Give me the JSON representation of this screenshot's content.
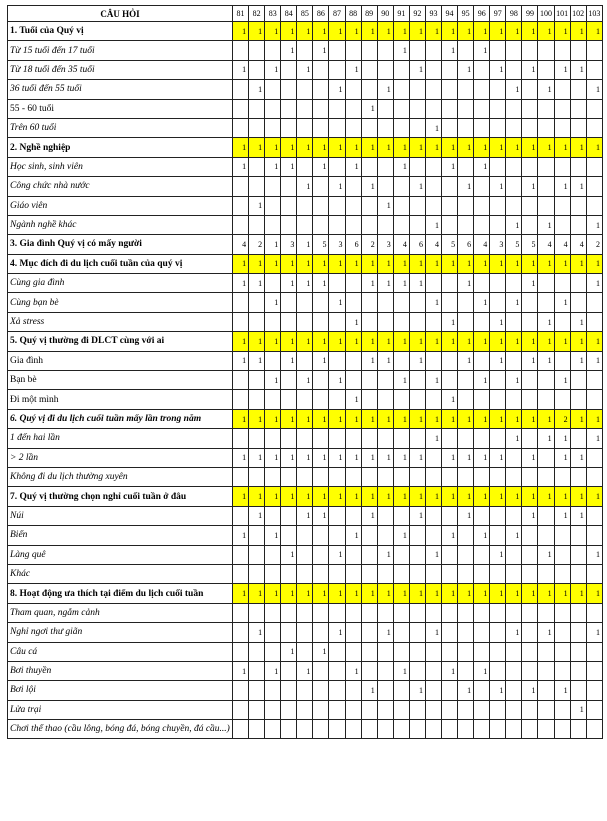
{
  "colors": {
    "highlight": "#ffff00",
    "border": "#222222"
  },
  "header": {
    "question_label": "CÂU HỎI",
    "columns": [
      "81",
      "82",
      "83",
      "84",
      "85",
      "86",
      "87",
      "88",
      "89",
      "90",
      "91",
      "92",
      "93",
      "94",
      "95",
      "96",
      "97",
      "98",
      "99",
      "100",
      "101",
      "102",
      "103"
    ]
  },
  "rows": [
    {
      "label": "1. Tuổi của Quý vị",
      "kind": "section",
      "highlight": true,
      "values": [
        "1",
        "1",
        "1",
        "1",
        "1",
        "1",
        "1",
        "1",
        "1",
        "1",
        "1",
        "1",
        "1",
        "1",
        "1",
        "1",
        "1",
        "1",
        "1",
        "1",
        "1",
        "1",
        "1"
      ]
    },
    {
      "label": "Từ 15 tuổi đến 17 tuổi",
      "kind": "item",
      "highlight": false,
      "values": [
        "",
        "",
        "",
        "1",
        "",
        "1",
        "",
        "",
        "",
        "",
        "1",
        "",
        "",
        "1",
        "",
        "1",
        "",
        "",
        "",
        "",
        "",
        "",
        ""
      ]
    },
    {
      "label": "Từ 18 tuổi đến 35 tuổi",
      "kind": "item",
      "highlight": false,
      "values": [
        "1",
        "",
        "1",
        "",
        "1",
        "",
        "",
        "1",
        "",
        "",
        "",
        "1",
        "",
        "",
        "1",
        "",
        "1",
        "",
        "1",
        "",
        "1",
        "1",
        ""
      ]
    },
    {
      "label": "36 tuổi đến 55 tuổi",
      "kind": "item",
      "highlight": false,
      "values": [
        "",
        "1",
        "",
        "",
        "",
        "",
        "1",
        "",
        "",
        "1",
        "",
        "",
        "",
        "",
        "",
        "",
        "",
        "1",
        "",
        "1",
        "",
        "",
        "1"
      ]
    },
    {
      "label": "55 - 60 tuổi",
      "kind": "item-plain",
      "highlight": false,
      "values": [
        "",
        "",
        "",
        "",
        "",
        "",
        "",
        "",
        "1",
        "",
        "",
        "",
        "",
        "",
        "",
        "",
        "",
        "",
        "",
        "",
        "",
        "",
        ""
      ]
    },
    {
      "label": "Trên 60 tuổi",
      "kind": "item",
      "highlight": false,
      "values": [
        "",
        "",
        "",
        "",
        "",
        "",
        "",
        "",
        "",
        "",
        "",
        "",
        "1",
        "",
        "",
        "",
        "",
        "",
        "",
        "",
        "",
        "",
        ""
      ]
    },
    {
      "label": "2. Nghề nghiệp",
      "kind": "section",
      "highlight": true,
      "values": [
        "1",
        "1",
        "1",
        "1",
        "1",
        "1",
        "1",
        "1",
        "1",
        "1",
        "1",
        "1",
        "1",
        "1",
        "1",
        "1",
        "1",
        "1",
        "1",
        "1",
        "1",
        "1",
        "1"
      ]
    },
    {
      "label": "Học sinh, sinh viên",
      "kind": "item",
      "highlight": false,
      "values": [
        "1",
        "",
        "1",
        "1",
        "",
        "1",
        "",
        "1",
        "",
        "",
        "1",
        "",
        "",
        "1",
        "",
        "1",
        "",
        "",
        "",
        "",
        "",
        "",
        ""
      ]
    },
    {
      "label": "Công chức nhà nước",
      "kind": "item",
      "highlight": false,
      "values": [
        "",
        "",
        "",
        "",
        "1",
        "",
        "1",
        "",
        "1",
        "",
        "",
        "1",
        "",
        "",
        "1",
        "",
        "1",
        "",
        "1",
        "",
        "1",
        "1",
        ""
      ]
    },
    {
      "label": "Giáo viên",
      "kind": "item",
      "highlight": false,
      "values": [
        "",
        "1",
        "",
        "",
        "",
        "",
        "",
        "",
        "",
        "1",
        "",
        "",
        "",
        "",
        "",
        "",
        "",
        "",
        "",
        "",
        "",
        "",
        ""
      ]
    },
    {
      "label": "Ngành nghề khác",
      "kind": "item",
      "highlight": false,
      "values": [
        "",
        "",
        "",
        "",
        "",
        "",
        "",
        "",
        "",
        "",
        "",
        "",
        "1",
        "",
        "",
        "",
        "",
        "1",
        "",
        "1",
        "",
        "",
        "1"
      ]
    },
    {
      "label": "3. Gia đình Quý vị có mấy người",
      "kind": "section",
      "highlight": false,
      "values": [
        "4",
        "2",
        "1",
        "3",
        "1",
        "5",
        "3",
        "6",
        "2",
        "3",
        "4",
        "6",
        "4",
        "5",
        "6",
        "4",
        "3",
        "5",
        "5",
        "4",
        "4",
        "4",
        "2"
      ]
    },
    {
      "label": "4. Mục đích đi du lịch cuối tuần của quý vị",
      "kind": "section",
      "highlight": true,
      "values": [
        "1",
        "1",
        "1",
        "1",
        "1",
        "1",
        "1",
        "1",
        "1",
        "1",
        "1",
        "1",
        "1",
        "1",
        "1",
        "1",
        "1",
        "1",
        "1",
        "1",
        "1",
        "1",
        "1"
      ]
    },
    {
      "label": "Cùng gia đình",
      "kind": "item",
      "highlight": false,
      "values": [
        "1",
        "1",
        "",
        "1",
        "1",
        "1",
        "",
        "",
        "1",
        "1",
        "1",
        "1",
        "",
        "",
        "1",
        "",
        "",
        "",
        "1",
        "",
        "",
        "",
        "1"
      ]
    },
    {
      "label": "Cùng bạn bè",
      "kind": "item",
      "highlight": false,
      "values": [
        "",
        "",
        "1",
        "",
        "",
        "",
        "1",
        "",
        "",
        "",
        "",
        "",
        "1",
        "",
        "",
        "1",
        "",
        "1",
        "",
        "",
        "1",
        "",
        ""
      ]
    },
    {
      "label": "Xả stress",
      "kind": "item",
      "highlight": false,
      "values": [
        "",
        "",
        "",
        "",
        "",
        "",
        "",
        "1",
        "",
        "",
        "",
        "",
        "",
        "1",
        "",
        "",
        "1",
        "",
        "",
        "1",
        "",
        "1",
        ""
      ]
    },
    {
      "label": "5. Quý vị thường đi DLCT cùng với ai",
      "kind": "section",
      "highlight": true,
      "values": [
        "1",
        "1",
        "1",
        "1",
        "1",
        "1",
        "1",
        "1",
        "1",
        "1",
        "1",
        "1",
        "1",
        "1",
        "1",
        "1",
        "1",
        "1",
        "1",
        "1",
        "1",
        "1",
        "1"
      ]
    },
    {
      "label": "Gia đình",
      "kind": "item-plain",
      "highlight": false,
      "values": [
        "1",
        "1",
        "",
        "1",
        "",
        "1",
        "",
        "",
        "1",
        "1",
        "",
        "1",
        "",
        "",
        "1",
        "",
        "1",
        "",
        "1",
        "1",
        "",
        "1",
        "1"
      ]
    },
    {
      "label": "Bạn bè",
      "kind": "item-plain",
      "highlight": false,
      "values": [
        "",
        "",
        "1",
        "",
        "1",
        "",
        "1",
        "",
        "",
        "",
        "1",
        "",
        "1",
        "",
        "",
        "1",
        "",
        "1",
        "",
        "",
        "1",
        "",
        ""
      ]
    },
    {
      "label": "Đi một mình",
      "kind": "item-plain",
      "highlight": false,
      "values": [
        "",
        "",
        "",
        "",
        "",
        "",
        "",
        "1",
        "",
        "",
        "",
        "",
        "",
        "1",
        "",
        "",
        "",
        "",
        "",
        "",
        "",
        "",
        ""
      ]
    },
    {
      "label": "6. Quý vị đi du lịch cuối tuần mấy lần trong năm",
      "kind": "section-italic",
      "highlight": true,
      "values": [
        "1",
        "1",
        "1",
        "1",
        "1",
        "1",
        "1",
        "1",
        "1",
        "1",
        "1",
        "1",
        "1",
        "1",
        "1",
        "1",
        "1",
        "1",
        "1",
        "1",
        "2",
        "1",
        "1"
      ]
    },
    {
      "label": "1 đến hai lần",
      "kind": "item",
      "highlight": false,
      "values": [
        "",
        "",
        "",
        "",
        "",
        "",
        "",
        "",
        "",
        "",
        "",
        "",
        "1",
        "",
        "",
        "",
        "",
        "1",
        "",
        "1",
        "1",
        "",
        "1"
      ]
    },
    {
      "label": "> 2 lần",
      "kind": "item",
      "highlight": false,
      "values": [
        "1",
        "1",
        "1",
        "1",
        "1",
        "1",
        "1",
        "1",
        "1",
        "1",
        "1",
        "1",
        "",
        "1",
        "1",
        "1",
        "1",
        "",
        "1",
        "",
        "1",
        "1",
        ""
      ]
    },
    {
      "label": "Không đi du lịch thường xuyên",
      "kind": "item",
      "highlight": false,
      "values": [
        "",
        "",
        "",
        "",
        "",
        "",
        "",
        "",
        "",
        "",
        "",
        "",
        "",
        "",
        "",
        "",
        "",
        "",
        "",
        "",
        "",
        "",
        ""
      ]
    },
    {
      "label": "7. Quý vị thường chọn nghỉ cuối tuần ở đâu",
      "kind": "section",
      "highlight": true,
      "values": [
        "1",
        "1",
        "1",
        "1",
        "1",
        "1",
        "1",
        "1",
        "1",
        "1",
        "1",
        "1",
        "1",
        "1",
        "1",
        "1",
        "1",
        "1",
        "1",
        "1",
        "1",
        "1",
        "1"
      ]
    },
    {
      "label": "Núi",
      "kind": "item",
      "highlight": false,
      "values": [
        "",
        "1",
        "",
        "",
        "1",
        "1",
        "",
        "",
        "1",
        "",
        "",
        "1",
        "",
        "",
        "1",
        "",
        "",
        "",
        "1",
        "",
        "1",
        "1",
        ""
      ]
    },
    {
      "label": "Biển",
      "kind": "item",
      "highlight": false,
      "values": [
        "1",
        "",
        "1",
        "",
        "",
        "",
        "",
        "1",
        "",
        "",
        "1",
        "",
        "",
        "1",
        "",
        "1",
        "",
        "1",
        "",
        "",
        "",
        "",
        ""
      ]
    },
    {
      "label": "Làng quê",
      "kind": "item",
      "highlight": false,
      "values": [
        "",
        "",
        "",
        "1",
        "",
        "",
        "1",
        "",
        "",
        "1",
        "",
        "",
        "1",
        "",
        "",
        "",
        "1",
        "",
        "",
        "1",
        "",
        "",
        "1"
      ]
    },
    {
      "label": "Khác",
      "kind": "item",
      "highlight": false,
      "values": [
        "",
        "",
        "",
        "",
        "",
        "",
        "",
        "",
        "",
        "",
        "",
        "",
        "",
        "",
        "",
        "",
        "",
        "",
        "",
        "",
        "",
        "",
        ""
      ]
    },
    {
      "label": "8. Hoạt động ưa thích tại điểm du lịch cuối tuần",
      "kind": "section",
      "highlight": true,
      "values": [
        "1",
        "1",
        "1",
        "1",
        "1",
        "1",
        "1",
        "1",
        "1",
        "1",
        "1",
        "1",
        "1",
        "1",
        "1",
        "1",
        "1",
        "1",
        "1",
        "1",
        "1",
        "1",
        "1"
      ]
    },
    {
      "label": "Tham quan, ngắm cảnh",
      "kind": "item",
      "highlight": false,
      "values": [
        "",
        "",
        "",
        "",
        "",
        "",
        "",
        "",
        "",
        "",
        "",
        "",
        "",
        "",
        "",
        "",
        "",
        "",
        "",
        "",
        "",
        "",
        ""
      ]
    },
    {
      "label": "Nghỉ ngơi thư giãn",
      "kind": "item",
      "highlight": false,
      "values": [
        "",
        "1",
        "",
        "",
        "",
        "",
        "1",
        "",
        "",
        "1",
        "",
        "",
        "1",
        "",
        "",
        "",
        "",
        "1",
        "",
        "1",
        "",
        "",
        "1"
      ]
    },
    {
      "label": "Câu cá",
      "kind": "item",
      "highlight": false,
      "values": [
        "",
        "",
        "",
        "1",
        "",
        "1",
        "",
        "",
        "",
        "",
        "",
        "",
        "",
        "",
        "",
        "",
        "",
        "",
        "",
        "",
        "",
        "",
        ""
      ]
    },
    {
      "label": "Bơi thuyền",
      "kind": "item",
      "highlight": false,
      "values": [
        "1",
        "",
        "1",
        "",
        "1",
        "",
        "",
        "1",
        "",
        "",
        "1",
        "",
        "",
        "1",
        "",
        "1",
        "",
        "",
        "",
        "",
        "",
        "",
        ""
      ]
    },
    {
      "label": "Bơi lội",
      "kind": "item",
      "highlight": false,
      "values": [
        "",
        "",
        "",
        "",
        "",
        "",
        "",
        "",
        "1",
        "",
        "",
        "1",
        "",
        "",
        "1",
        "",
        "1",
        "",
        "1",
        "",
        "1",
        "",
        ""
      ]
    },
    {
      "label": "Lửa trại",
      "kind": "item",
      "highlight": false,
      "values": [
        "",
        "",
        "",
        "",
        "",
        "",
        "",
        "",
        "",
        "",
        "",
        "",
        "",
        "",
        "",
        "",
        "",
        "",
        "",
        "",
        "",
        "1",
        ""
      ]
    },
    {
      "label": "Chơi thể thao (cầu lông, bóng đá, bóng chuyền, đá cầu...)",
      "kind": "item",
      "highlight": false,
      "values": [
        "",
        "",
        "",
        "",
        "",
        "",
        "",
        "",
        "",
        "",
        "",
        "",
        "",
        "",
        "",
        "",
        "",
        "",
        "",
        "",
        "",
        "",
        ""
      ]
    }
  ]
}
